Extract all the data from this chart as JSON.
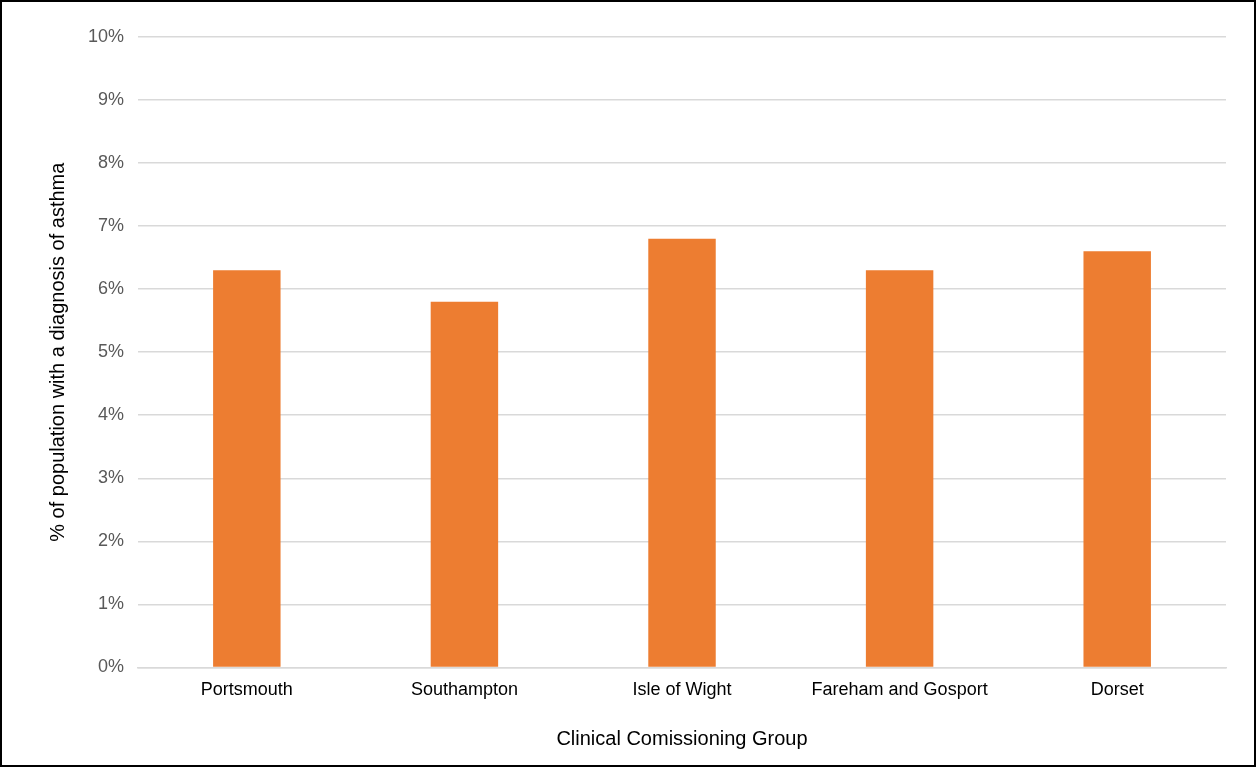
{
  "chart_data": {
    "type": "bar",
    "xlabel": "Clinical Comissioning Group",
    "ylabel": "% of population with a diagnosis of asthma",
    "categories": [
      "Portsmouth",
      "Southampton",
      "Isle of Wight",
      "Fareham and Gosport",
      "Dorset"
    ],
    "values": [
      6.3,
      5.8,
      6.8,
      6.3,
      6.6
    ],
    "color": "#ed7d31",
    "ylim": [
      0,
      10
    ],
    "yticks": [
      {
        "value": 0,
        "label": "0%"
      },
      {
        "value": 1,
        "label": "1%"
      },
      {
        "value": 2,
        "label": "2%"
      },
      {
        "value": 3,
        "label": "3%"
      },
      {
        "value": 4,
        "label": "4%"
      },
      {
        "value": 5,
        "label": "5%"
      },
      {
        "value": 6,
        "label": "6%"
      },
      {
        "value": 7,
        "label": "7%"
      },
      {
        "value": 8,
        "label": "8%"
      },
      {
        "value": 9,
        "label": "9%"
      },
      {
        "value": 10,
        "label": "10%"
      }
    ],
    "grid": "y"
  }
}
